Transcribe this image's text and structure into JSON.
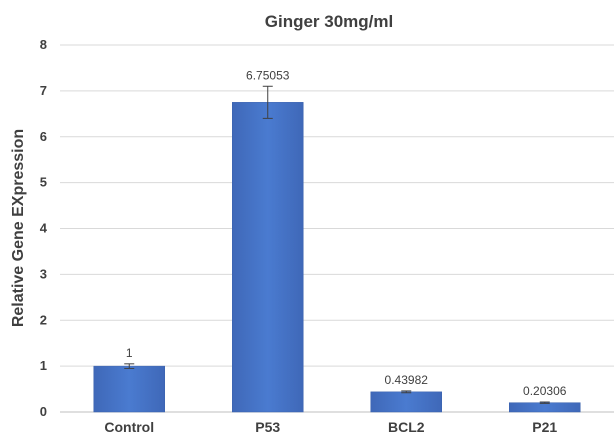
{
  "chart_data": {
    "type": "bar",
    "title": "Ginger 30mg/ml",
    "xlabel": "",
    "ylabel": "Relative Gene EXpression",
    "categories": [
      "Control",
      "P53",
      "BCL2",
      "P21"
    ],
    "values": [
      1,
      6.75053,
      0.43982,
      0.20306
    ],
    "errors": [
      0.05,
      0.35,
      0.02,
      0.015
    ],
    "data_labels": [
      "1",
      "6.75053",
      "0.43982",
      "0.20306"
    ],
    "ylim": [
      0,
      8
    ],
    "yticks": [
      0,
      1,
      2,
      3,
      4,
      5,
      6,
      7,
      8
    ],
    "grid": true,
    "legend": "none",
    "bar_color": "#4472c4",
    "bar_color_light": "#5b8fd8"
  }
}
